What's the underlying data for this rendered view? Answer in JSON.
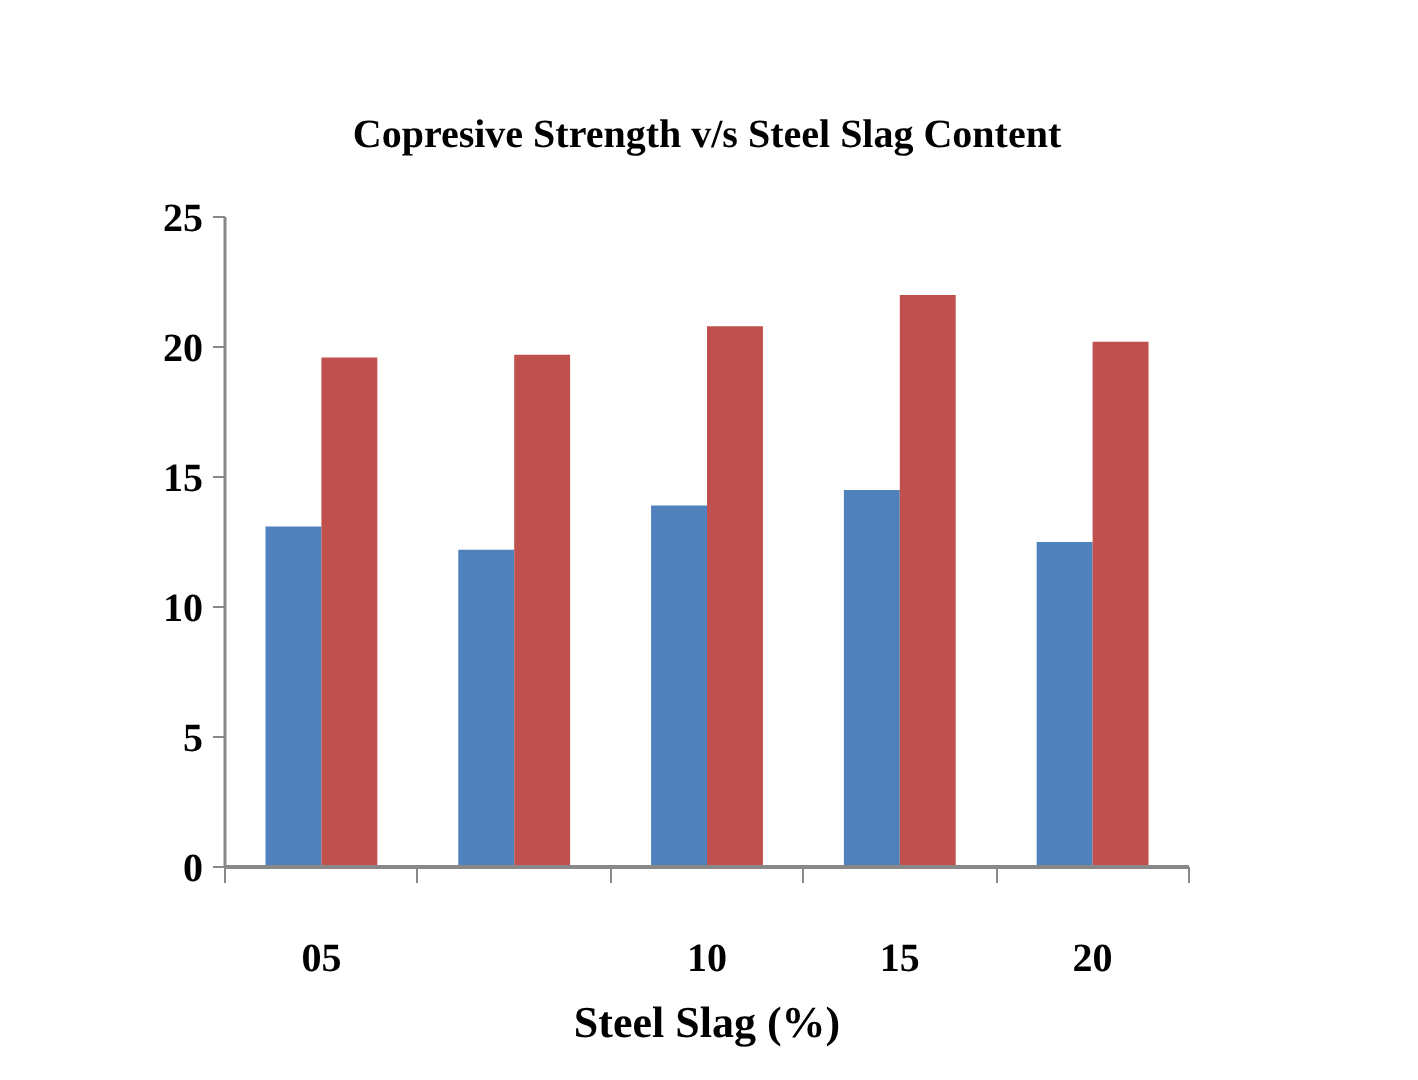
{
  "chart_data": {
    "type": "bar",
    "title": "Copresive Strength v/s Steel Slag Content",
    "xlabel": "Steel Slag (%)",
    "categories": [
      "05",
      null,
      "10",
      "15",
      "20"
    ],
    "series": [
      {
        "color": "#4f81bd",
        "values": [
          13.1,
          12.2,
          13.9,
          14.5,
          12.5
        ]
      },
      {
        "color": "#c0504d",
        "values": [
          19.6,
          19.7,
          20.8,
          22.0,
          20.2
        ]
      }
    ],
    "ylim": [
      0,
      25
    ],
    "yticks": [
      0,
      5,
      10,
      15,
      20,
      25
    ]
  }
}
